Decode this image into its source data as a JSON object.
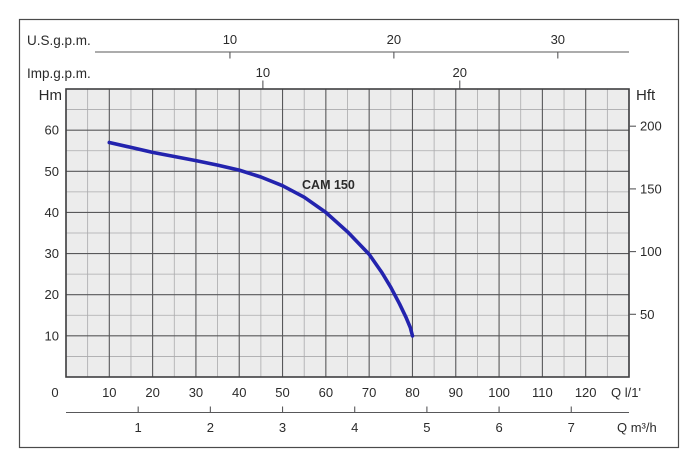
{
  "window": {
    "background": "#ffffff",
    "frame_color": "#4a4a4a"
  },
  "chart_data": {
    "type": "line",
    "title": "CAM 150",
    "series": [
      {
        "name": "CAM 150",
        "color": "#2323ae",
        "x_unit": "l/1'",
        "y_unit": "m",
        "points": [
          [
            10,
            57
          ],
          [
            15,
            55.8
          ],
          [
            20,
            54.6
          ],
          [
            25,
            53.6
          ],
          [
            30,
            52.6
          ],
          [
            35,
            51.5
          ],
          [
            40,
            50.3
          ],
          [
            45,
            48.6
          ],
          [
            50,
            46.5
          ],
          [
            55,
            43.7
          ],
          [
            60,
            40
          ],
          [
            65,
            35.3
          ],
          [
            70,
            29.8
          ],
          [
            73,
            25.3
          ],
          [
            75,
            21.8
          ],
          [
            77,
            17.8
          ],
          [
            78.5,
            14.5
          ],
          [
            79.5,
            12
          ],
          [
            80,
            10
          ]
        ],
        "label_anchor_q": 54.5,
        "label_anchor_h": 45.7
      }
    ],
    "axes": {
      "left": {
        "label": "Hm",
        "ticks": [
          10,
          20,
          30,
          40,
          50,
          60
        ],
        "range": [
          0,
          70
        ]
      },
      "right": {
        "label": "Hft",
        "ticks": [
          50,
          100,
          150,
          200
        ],
        "meters_per_foot": 0.3048
      },
      "bottom_flow_lpm": {
        "label": "Q l/1'",
        "ticks": [
          0,
          10,
          20,
          30,
          40,
          50,
          60,
          70,
          80,
          90,
          100,
          110,
          120
        ],
        "range": [
          0,
          130
        ]
      },
      "bottom_flow_m3h": {
        "label": "Q m³/h",
        "ticks": [
          1,
          2,
          3,
          4,
          5,
          6,
          7
        ],
        "lpm_per_unit": 16.6667
      },
      "top_us_gpm": {
        "label": "U.S.g.p.m.",
        "ticks": [
          10,
          20,
          30
        ],
        "lpm_per_unit": 3.7854
      },
      "top_imp_gpm": {
        "label": "Imp.g.p.m.",
        "ticks": [
          10,
          20
        ],
        "lpm_per_unit": 4.5461
      }
    },
    "grid": {
      "background": "#ececec",
      "major_color": "#58585a",
      "minor_color": "#aaaaac",
      "major_step_q": 10,
      "minor_step_q": 5,
      "major_step_h": 10,
      "minor_step_h": 5
    },
    "text_color": "#2b2b2b",
    "legend_position": "none"
  }
}
